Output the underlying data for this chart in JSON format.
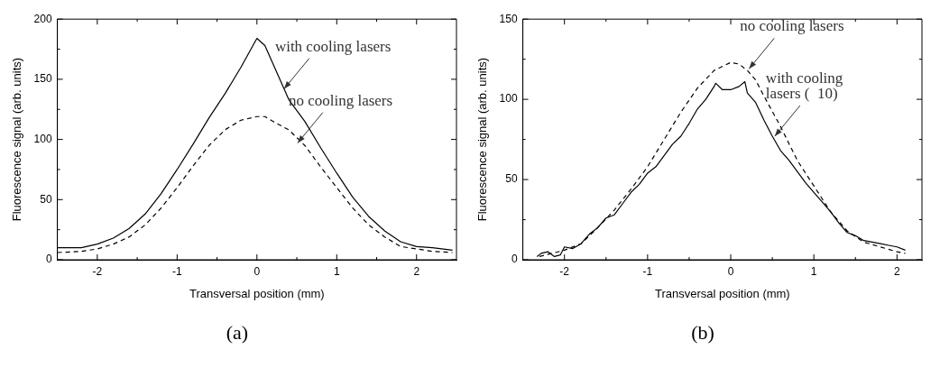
{
  "chart_data": [
    {
      "type": "line",
      "xlabel": "Transversal position (mm)",
      "ylabel": "Fluorescence signal (arb. units)",
      "xlim": [
        -2.5,
        2.5
      ],
      "ylim": [
        0,
        200
      ],
      "xticks": [
        -2,
        -1,
        0,
        1,
        2
      ],
      "yticks": [
        0,
        50,
        100,
        150,
        200
      ],
      "grid": false,
      "legend": false,
      "annotations": [
        {
          "text": "with cooling lasers",
          "x": 0.34,
          "y": 142
        },
        {
          "text": "no cooling lasers",
          "x": 0.51,
          "y": 97
        },
        "(a)"
      ],
      "series": [
        {
          "color": "#000000",
          "line_style": "solid",
          "x": [
            -2.5,
            -2.2,
            -2,
            -1.8,
            -1.6,
            -1.4,
            -1.2,
            -1,
            -0.8,
            -0.6,
            -0.4,
            -0.2,
            -0.1,
            0,
            0.1,
            0.2,
            0.3,
            0.4,
            0.6,
            0.8,
            1,
            1.2,
            1.4,
            1.6,
            1.8,
            2,
            2.2,
            2.45
          ],
          "values": [
            10,
            10,
            13,
            18,
            26,
            38,
            55,
            75,
            96,
            118,
            138,
            160,
            172,
            184,
            178,
            163,
            148,
            133,
            115,
            93,
            72,
            52,
            36,
            24,
            15,
            11,
            10,
            8
          ]
        },
        {
          "color": "#000000",
          "line_style": "dashed",
          "x": [
            -2.5,
            -2.2,
            -2,
            -1.8,
            -1.6,
            -1.4,
            -1.2,
            -1,
            -0.8,
            -0.6,
            -0.4,
            -0.2,
            0,
            0.1,
            0.2,
            0.4,
            0.6,
            0.8,
            1,
            1.2,
            1.4,
            1.6,
            1.8,
            2,
            2.2,
            2.45
          ],
          "values": [
            6,
            7,
            9,
            13,
            19,
            29,
            43,
            60,
            78,
            95,
            108,
            116,
            119,
            119,
            115,
            108,
            95,
            77,
            60,
            43,
            29,
            19,
            11,
            9,
            7,
            6
          ]
        }
      ]
    },
    {
      "type": "line",
      "xlabel": "Transversal position (mm)",
      "ylabel": "Fluorescence signal (arb. units)",
      "xlim": [
        -2.5,
        2.3
      ],
      "ylim": [
        0,
        150
      ],
      "xticks": [
        -2,
        -1,
        0,
        1,
        2
      ],
      "yticks": [
        0,
        50,
        100,
        150
      ],
      "grid": false,
      "legend": false,
      "annotations": [
        {
          "text": "no cooling lasers",
          "x": 0.22,
          "y": 119
        },
        {
          "text": "with cooling lasers (  10)",
          "x": 0.53,
          "y": 77
        },
        "(b)"
      ],
      "series": [
        {
          "color": "#000000",
          "line_style": "solid",
          "x": [
            -2.33,
            -2.28,
            -2.2,
            -2.12,
            -2.05,
            -2,
            -1.9,
            -1.8,
            -1.7,
            -1.6,
            -1.5,
            -1.4,
            -1.3,
            -1.2,
            -1.1,
            -1,
            -0.9,
            -0.8,
            -0.7,
            -0.6,
            -0.5,
            -0.4,
            -0.3,
            -0.2,
            -0.18,
            -0.1,
            0,
            0.1,
            0.17,
            0.2,
            0.3,
            0.4,
            0.5,
            0.6,
            0.7,
            0.8,
            0.9,
            1,
            1.1,
            1.2,
            1.3,
            1.4,
            1.5,
            1.6,
            1.7,
            1.8,
            1.9,
            2,
            2.1
          ],
          "values": [
            2,
            4,
            5,
            2,
            3,
            8,
            7,
            10,
            16,
            20,
            26,
            28,
            35,
            42,
            47,
            54,
            58,
            65,
            72,
            77,
            85,
            94,
            100,
            108,
            110,
            106,
            106,
            108,
            111,
            104,
            98,
            87,
            77,
            68,
            62,
            55,
            48,
            42,
            36,
            30,
            23,
            17,
            15,
            12,
            11,
            10,
            9,
            8,
            6
          ]
        },
        {
          "color": "#000000",
          "line_style": "dashed",
          "x": [
            -2.3,
            -2,
            -1.8,
            -1.6,
            -1.4,
            -1.2,
            -1,
            -0.8,
            -0.6,
            -0.4,
            -0.2,
            0,
            0.1,
            0.2,
            0.3,
            0.4,
            0.6,
            0.8,
            1,
            1.2,
            1.4,
            1.6,
            1.8,
            2,
            2.1
          ],
          "values": [
            2,
            6,
            10,
            20,
            31,
            44,
            58,
            75,
            92,
            107,
            118,
            123,
            122,
            118,
            112,
            102,
            83,
            62,
            46,
            30,
            18,
            11,
            8,
            5,
            4
          ]
        }
      ]
    }
  ]
}
